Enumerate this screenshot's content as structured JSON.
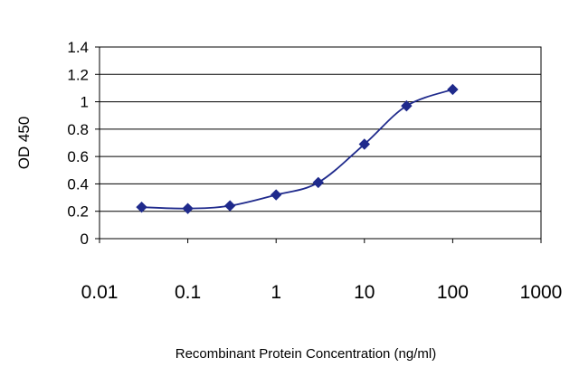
{
  "chart_data": {
    "type": "line",
    "title": "",
    "xlabel": "Recombinant Protein Concentration (ng/ml)",
    "ylabel": "OD 450",
    "x_scale": "log",
    "xlim": [
      0.01,
      1000
    ],
    "ylim": [
      0,
      1.4
    ],
    "x_ticks": [
      "0.01",
      "0.1",
      "1",
      "10",
      "100",
      "1000"
    ],
    "y_ticks": [
      "0",
      "0.2",
      "0.4",
      "0.6",
      "0.8",
      "1",
      "1.2",
      "1.4"
    ],
    "grid": "horizontal",
    "series": [
      {
        "x": [
          0.03,
          0.1,
          0.3,
          1,
          3,
          10,
          30,
          100
        ],
        "values": [
          0.23,
          0.22,
          0.24,
          0.32,
          0.41,
          0.69,
          0.97,
          1.09
        ]
      }
    ],
    "colors": {
      "line": "#1f2a8c",
      "marker": "#1f2a8c",
      "grid": "#000000",
      "plot_bg": "#ffffff"
    }
  }
}
